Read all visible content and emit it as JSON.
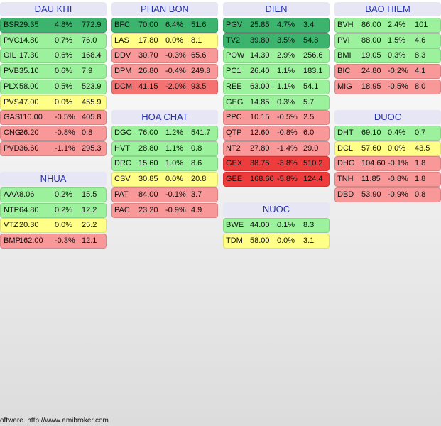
{
  "groups": [
    {
      "title": "DAU KHI",
      "rows": [
        {
          "cells": [
            "BSR",
            "29.35",
            "4.8%",
            "772.9"
          ],
          "color": "#3cb46e"
        },
        {
          "cells": [
            "PVC",
            "14.80",
            "0.7%",
            "76.0"
          ],
          "color": "#9cf29c"
        },
        {
          "cells": [
            "OIL",
            "17.30",
            "0.6%",
            "168.4"
          ],
          "color": "#9cf29c"
        },
        {
          "cells": [
            "PVB",
            "35.10",
            "0.6%",
            "7.9"
          ],
          "color": "#9cf29c"
        },
        {
          "cells": [
            "PLX",
            "58.00",
            "0.5%",
            "523.9"
          ],
          "color": "#9cf29c"
        },
        {
          "cells": [
            "PVS",
            "47.00",
            "0.0%",
            "455.9"
          ],
          "color": "#ffff88"
        },
        {
          "cells": [
            "GAS",
            "110.00",
            "-0.5%",
            "405.8"
          ],
          "color": "#f89898"
        },
        {
          "cells": [
            "CNG",
            "26.20",
            "-0.8%",
            "0.8"
          ],
          "color": "#f89898"
        },
        {
          "cells": [
            "PVD",
            "36.60",
            "-1.1%",
            "295.3"
          ],
          "color": "#f89898"
        }
      ]
    },
    {
      "title": "NHUA",
      "rows": [
        {
          "cells": [
            "AAA",
            "8.06",
            "0.2%",
            "15.5"
          ],
          "color": "#9cf29c"
        },
        {
          "cells": [
            "NTP",
            "64.80",
            "0.2%",
            "12.2"
          ],
          "color": "#9cf29c"
        },
        {
          "cells": [
            "VTZ",
            "20.30",
            "0.0%",
            "25.2"
          ],
          "color": "#ffff88"
        },
        {
          "cells": [
            "BMP",
            "162.00",
            "-0.3%",
            "12.1"
          ],
          "color": "#f89898"
        }
      ]
    },
    {
      "title": "PHAN BON",
      "rows": [
        {
          "cells": [
            "BFC",
            "70.00",
            "6.4%",
            "51.6"
          ],
          "color": "#3cb46e"
        },
        {
          "cells": [
            "LAS",
            "17.80",
            "0.0%",
            "8.1"
          ],
          "color": "#ffff88"
        },
        {
          "cells": [
            "DDV",
            "30.70",
            "-0.3%",
            "65.6"
          ],
          "color": "#f89898"
        },
        {
          "cells": [
            "DPM",
            "26.80",
            "-0.4%",
            "249.8"
          ],
          "color": "#f89898"
        },
        {
          "cells": [
            "DCM",
            "41.15",
            "-2.0%",
            "93.5"
          ],
          "color": "#f47272"
        }
      ]
    },
    {
      "title": "HOA CHAT",
      "rows": [
        {
          "cells": [
            "DGC",
            "76.00",
            "1.2%",
            "541.7"
          ],
          "color": "#9cf29c"
        },
        {
          "cells": [
            "HVT",
            "28.80",
            "1.1%",
            "0.8"
          ],
          "color": "#9cf29c"
        },
        {
          "cells": [
            "DRC",
            "15.60",
            "1.0%",
            "8.6"
          ],
          "color": "#9cf29c"
        },
        {
          "cells": [
            "CSV",
            "30.85",
            "0.0%",
            "20.8"
          ],
          "color": "#ffff88"
        },
        {
          "cells": [
            "PAT",
            "84.00",
            "-0.1%",
            "3.7"
          ],
          "color": "#f89898"
        },
        {
          "cells": [
            "PAC",
            "23.20",
            "-0.9%",
            "4.9"
          ],
          "color": "#f89898"
        }
      ]
    },
    {
      "title": "DIEN",
      "rows": [
        {
          "cells": [
            "PGV",
            "25.85",
            "4.7%",
            "3.4"
          ],
          "color": "#3cb46e"
        },
        {
          "cells": [
            "TV2",
            "39.80",
            "3.5%",
            "54.8"
          ],
          "color": "#3cb46e"
        },
        {
          "cells": [
            "POW",
            "14.30",
            "2.9%",
            "256.6"
          ],
          "color": "#9cf29c"
        },
        {
          "cells": [
            "PC1",
            "26.40",
            "1.1%",
            "183.1"
          ],
          "color": "#9cf29c"
        },
        {
          "cells": [
            "REE",
            "63.00",
            "1.1%",
            "54.1"
          ],
          "color": "#9cf29c"
        },
        {
          "cells": [
            "GEG",
            "14.85",
            "0.3%",
            "5.7"
          ],
          "color": "#9cf29c"
        },
        {
          "cells": [
            "PPC",
            "10.15",
            "-0.5%",
            "2.5"
          ],
          "color": "#f89898"
        },
        {
          "cells": [
            "QTP",
            "12.60",
            "-0.8%",
            "6.0"
          ],
          "color": "#f89898"
        },
        {
          "cells": [
            "NT2",
            "27.80",
            "-1.4%",
            "29.0"
          ],
          "color": "#f89898"
        },
        {
          "cells": [
            "GEX",
            "38.75",
            "-3.8%",
            "510.2"
          ],
          "color": "#ee3c3c"
        },
        {
          "cells": [
            "GEE",
            "168.60",
            "-5.8%",
            "124.4"
          ],
          "color": "#ee3c3c"
        }
      ]
    },
    {
      "title": "NUOC",
      "rows": [
        {
          "cells": [
            "BWE",
            "44.00",
            "0.1%",
            "8.3"
          ],
          "color": "#9cf29c"
        },
        {
          "cells": [
            "TDM",
            "58.00",
            "0.0%",
            "3.1"
          ],
          "color": "#ffff88"
        }
      ]
    },
    {
      "title": "BAO HIEM",
      "rows": [
        {
          "cells": [
            "BVH",
            "86.00",
            "2.4%",
            "101"
          ],
          "color": "#9cf29c"
        },
        {
          "cells": [
            "PVI",
            "88.00",
            "1.5%",
            "4.6"
          ],
          "color": "#9cf29c"
        },
        {
          "cells": [
            "BMI",
            "19.05",
            "0.3%",
            "8.3"
          ],
          "color": "#9cf29c"
        },
        {
          "cells": [
            "BIC",
            "24.80",
            "-0.2%",
            "4.1"
          ],
          "color": "#f89898"
        },
        {
          "cells": [
            "MIG",
            "18.95",
            "-0.5%",
            "8.0"
          ],
          "color": "#f89898"
        }
      ]
    },
    {
      "title": "DUOC",
      "rows": [
        {
          "cells": [
            "DHT",
            "69.10",
            "0.4%",
            "0.7"
          ],
          "color": "#9cf29c"
        },
        {
          "cells": [
            "DCL",
            "57.60",
            "0.0%",
            "43.5"
          ],
          "color": "#ffff88"
        },
        {
          "cells": [
            "DHG",
            "104.60",
            "-0.1%",
            "1.8"
          ],
          "color": "#f89898"
        },
        {
          "cells": [
            "TNH",
            "11.85",
            "-0.8%",
            "1.8"
          ],
          "color": "#f89898"
        },
        {
          "cells": [
            "DBD",
            "53.90",
            "-0.9%",
            "0.8"
          ],
          "color": "#f89898"
        }
      ]
    }
  ],
  "footer": "oftware. http://www.amibroker.com"
}
